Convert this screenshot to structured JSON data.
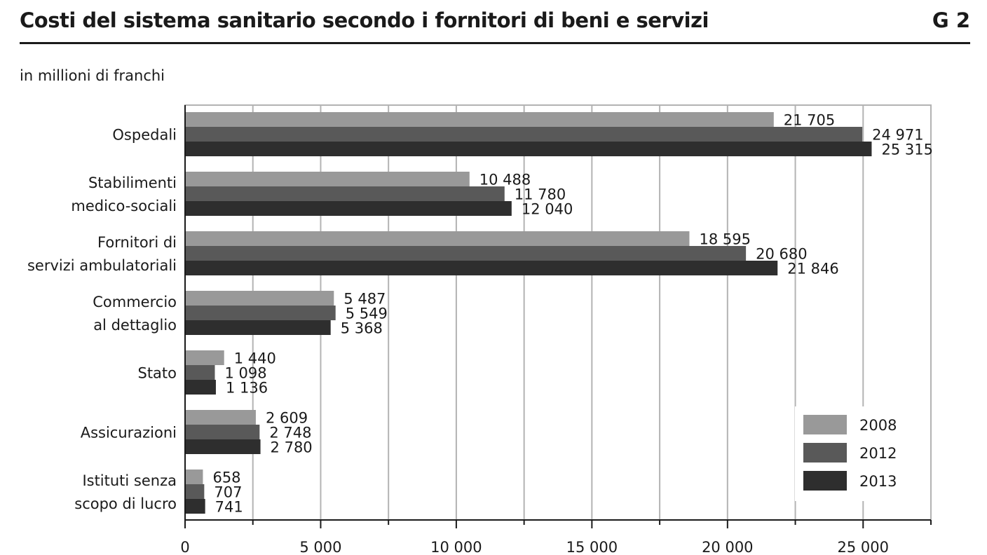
{
  "figure": {
    "title": "Costi del sistema sanitario secondo i fornitori di beni e servizi",
    "code": "G 2",
    "unit": "in millioni di franchi"
  },
  "chart_data": {
    "type": "bar",
    "orientation": "horizontal",
    "categories": [
      [
        "Ospedali"
      ],
      [
        "Stabilimenti",
        "medico-sociali"
      ],
      [
        "Fornitori di",
        "servizi ambulatoriali"
      ],
      [
        "Commercio",
        "al dettaglio"
      ],
      [
        "Stato"
      ],
      [
        "Assicurazioni"
      ],
      [
        "Istituti senza",
        "scopo di lucro"
      ]
    ],
    "series": [
      {
        "name": "2008",
        "color": "#999999",
        "values": [
          21705,
          10488,
          18595,
          5487,
          1440,
          2609,
          658
        ],
        "labels": [
          "21 705",
          "10 488",
          "18 595",
          "5 487",
          "1 440",
          "2 609",
          "658"
        ]
      },
      {
        "name": "2012",
        "color": "#595959",
        "values": [
          24971,
          11780,
          20680,
          5549,
          1098,
          2748,
          707
        ],
        "labels": [
          "24 971",
          "11 780",
          "20 680",
          "5 549",
          "1 098",
          "2 748",
          "707"
        ]
      },
      {
        "name": "2013",
        "color": "#2e2e2e",
        "values": [
          25315,
          12040,
          21846,
          5368,
          1136,
          2780,
          741
        ],
        "labels": [
          "25 315",
          "12 040",
          "21 846",
          "5 368",
          "1 136",
          "2 780",
          "741"
        ]
      }
    ],
    "xlim": [
      0,
      27500
    ],
    "xticks": [
      0,
      5000,
      10000,
      15000,
      20000,
      25000
    ],
    "xtick_labels": [
      "0",
      "5 000",
      "10 000",
      "15 000",
      "20 000",
      "25 000"
    ],
    "grid": "vertical",
    "legend": "bottom-right",
    "xlabel": "",
    "ylabel": ""
  }
}
